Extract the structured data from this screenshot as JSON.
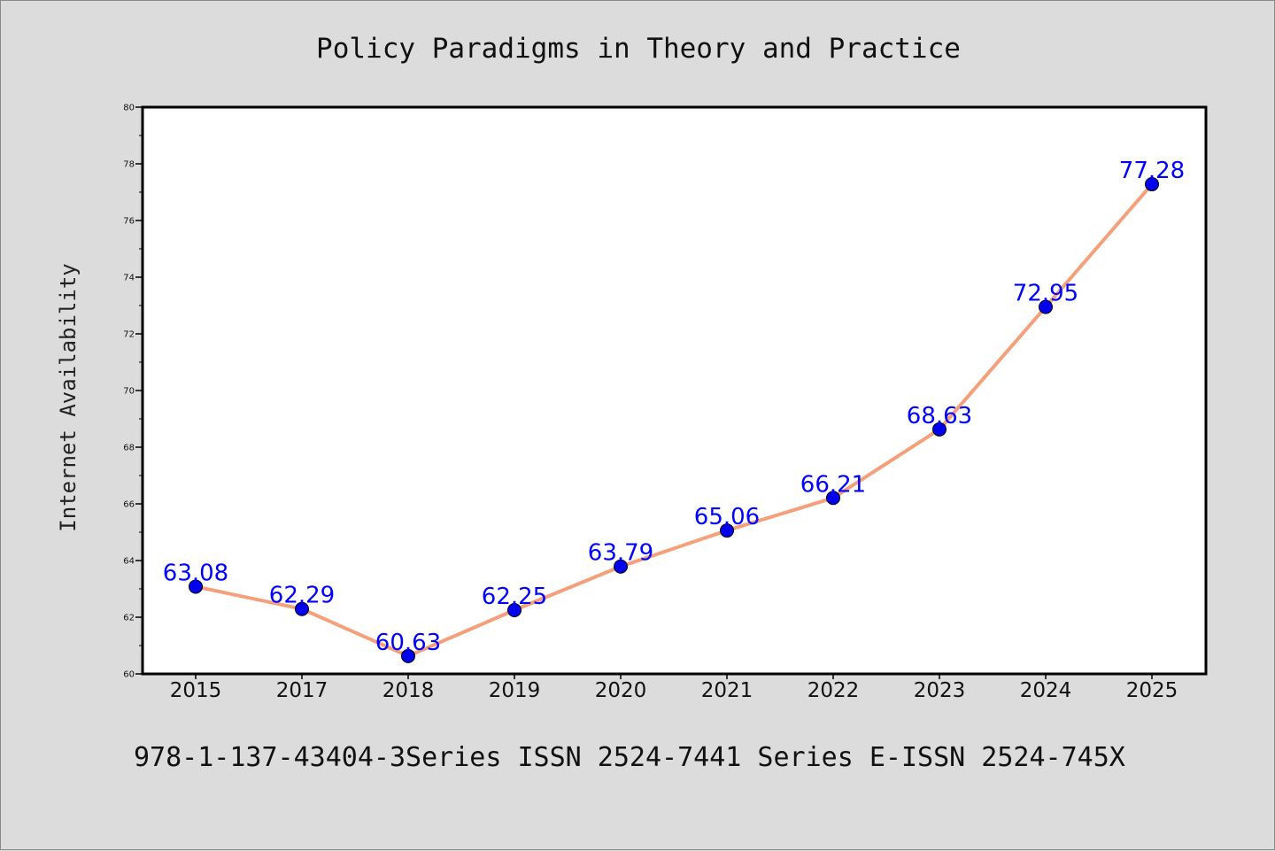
{
  "chart_data": {
    "type": "line",
    "title": "Policy Paradigms in Theory and Practice",
    "ylabel": "Internet Availability",
    "xlabel": "",
    "categories": [
      "2015",
      "2017",
      "2018",
      "2019",
      "2020",
      "2021",
      "2022",
      "2023",
      "2024",
      "2025"
    ],
    "series": [
      {
        "values": [
          63.08,
          62.29,
          60.63,
          62.25,
          63.79,
          65.06,
          66.21,
          68.63,
          72.95,
          77.28
        ],
        "labels": [
          "63.08",
          "62.29",
          "60.63",
          "62.25",
          "63.79",
          "65.06",
          "66.21",
          "68.63",
          "72.95",
          "77.28"
        ],
        "line_color": "#f4a07a",
        "marker_color": "#0000ee",
        "label_color": "#0000ff"
      }
    ],
    "ylim": [
      60,
      80
    ],
    "yticks": [
      "60",
      "62",
      "64",
      "66",
      "68",
      "70",
      "72",
      "74",
      "76",
      "78",
      "80"
    ],
    "grid": false,
    "legend": "none",
    "plot_background": "#ffffff"
  },
  "footer": "978-1-137-43404-3Series ISSN 2524-7441 Series E-ISSN 2524-745X"
}
